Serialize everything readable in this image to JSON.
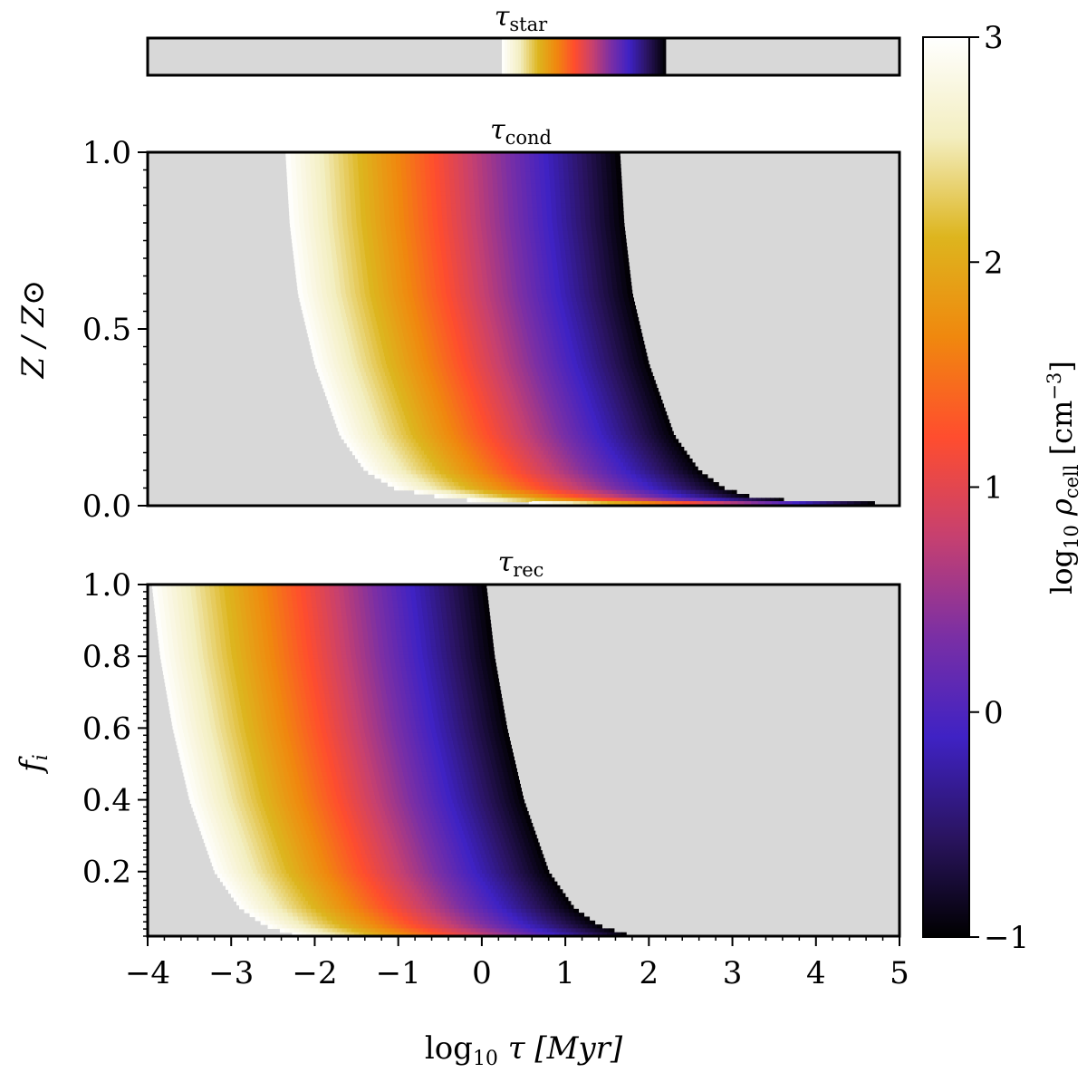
{
  "chart_data": [
    {
      "type": "heatmap",
      "panel": "tau_star",
      "title": "τ",
      "title_sub": "star",
      "xlim": [
        -4,
        5
      ],
      "band": {
        "x_start": 0.24,
        "x_end": 2.2,
        "rho_start": 3,
        "rho_end": -1
      }
    },
    {
      "type": "heatmap",
      "panel": "tau_cond",
      "title": "τ",
      "title_sub": "cond",
      "ylabel": "Z / Z⊙",
      "xlim": [
        -4,
        5
      ],
      "ylim": [
        0.0,
        1.0
      ],
      "yticks": [
        "0.0",
        "0.5",
        "1.0"
      ],
      "boundary_left": [
        {
          "y": 1.0,
          "x": -2.35
        },
        {
          "y": 0.8,
          "x": -2.3
        },
        {
          "y": 0.6,
          "x": -2.2
        },
        {
          "y": 0.4,
          "x": -2.0
        },
        {
          "y": 0.2,
          "x": -1.7
        },
        {
          "y": 0.1,
          "x": -1.4
        },
        {
          "y": 0.05,
          "x": -1.05
        },
        {
          "y": 0.02,
          "x": -0.4
        },
        {
          "y": 0.005,
          "x": 0.6
        }
      ],
      "boundary_right": [
        {
          "y": 1.0,
          "x": 1.65
        },
        {
          "y": 0.8,
          "x": 1.7
        },
        {
          "y": 0.6,
          "x": 1.8
        },
        {
          "y": 0.4,
          "x": 2.0
        },
        {
          "y": 0.2,
          "x": 2.3
        },
        {
          "y": 0.1,
          "x": 2.6
        },
        {
          "y": 0.05,
          "x": 2.9
        },
        {
          "y": 0.02,
          "x": 3.3
        },
        {
          "y": 0.005,
          "x": 4.7
        }
      ]
    },
    {
      "type": "heatmap",
      "panel": "tau_rec",
      "title": "τ",
      "title_sub": "rec",
      "ylabel": "f",
      "ylabel_sub": "i",
      "xlabel": "log",
      "xlabel_sub": "10",
      "xlabel_rest": " τ [Myr]",
      "xlim": [
        -4,
        5
      ],
      "ylim": [
        0.02,
        1.0
      ],
      "xticks": [
        "−4",
        "−3",
        "−2",
        "−1",
        "0",
        "1",
        "2",
        "3",
        "4",
        "5"
      ],
      "yticks": [
        "0.2",
        "0.4",
        "0.6",
        "0.8",
        "1.0"
      ],
      "boundary_left": [
        {
          "y": 1.0,
          "x": -3.95
        },
        {
          "y": 0.8,
          "x": -3.85
        },
        {
          "y": 0.6,
          "x": -3.7
        },
        {
          "y": 0.4,
          "x": -3.5
        },
        {
          "y": 0.2,
          "x": -3.2
        },
        {
          "y": 0.1,
          "x": -2.9
        },
        {
          "y": 0.05,
          "x": -2.6
        },
        {
          "y": 0.02,
          "x": -2.2
        }
      ],
      "boundary_right": [
        {
          "y": 1.0,
          "x": 0.05
        },
        {
          "y": 0.8,
          "x": 0.15
        },
        {
          "y": 0.6,
          "x": 0.3
        },
        {
          "y": 0.4,
          "x": 0.5
        },
        {
          "y": 0.2,
          "x": 0.8
        },
        {
          "y": 0.1,
          "x": 1.1
        },
        {
          "y": 0.05,
          "x": 1.4
        },
        {
          "y": 0.02,
          "x": 1.8
        }
      ]
    }
  ],
  "colorbar": {
    "label_pre": "log",
    "label_sub10": "10",
    "label_rho": " ρ",
    "label_sub": "cell",
    "label_unit": " [cm",
    "label_exp": "−3",
    "label_close": "]",
    "range": [
      -1,
      3
    ],
    "ticks": [
      "3",
      "2",
      "1",
      "0",
      "−1"
    ],
    "colormap": [
      "#000000",
      "#2a1460",
      "#3f22c4",
      "#7a2fa5",
      "#c64070",
      "#ff4d2e",
      "#f0880e",
      "#ddb51e",
      "#f3eec0",
      "#ffffff"
    ]
  },
  "colors": {
    "empty": "#d8d8d8",
    "frame": "#000000"
  }
}
